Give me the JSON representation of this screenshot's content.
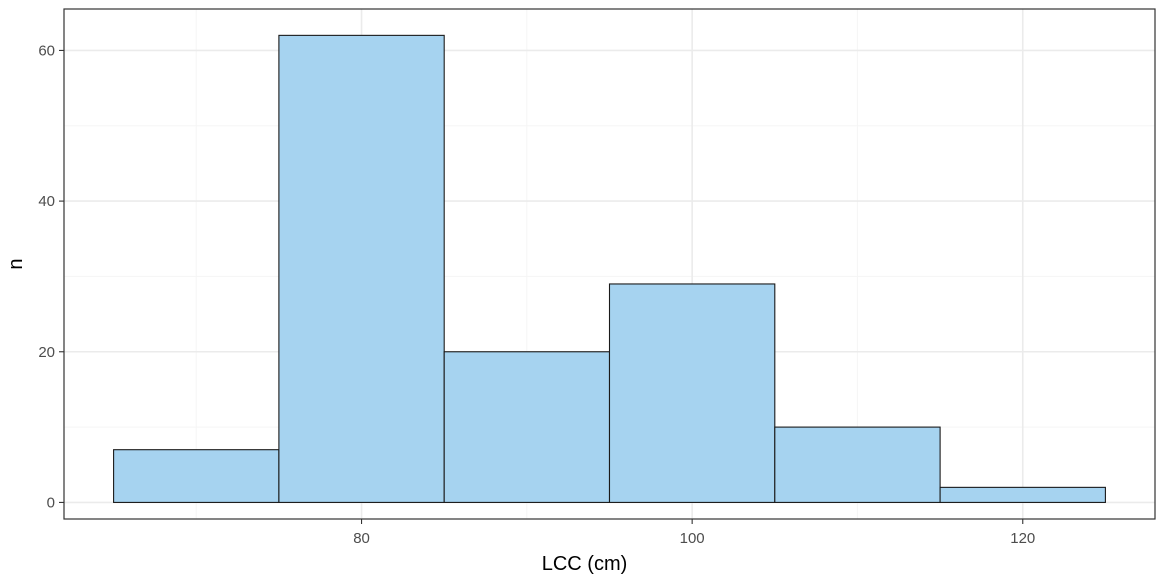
{
  "chart_data": {
    "type": "bar",
    "subtype": "histogram",
    "title": "",
    "xlabel": "LCC (cm)",
    "ylabel": "n",
    "bins": [
      {
        "x_start": 65,
        "x_end": 75,
        "count": 7
      },
      {
        "x_start": 75,
        "x_end": 85,
        "count": 62
      },
      {
        "x_start": 85,
        "x_end": 95,
        "count": 20
      },
      {
        "x_start": 95,
        "x_end": 105,
        "count": 29
      },
      {
        "x_start": 105,
        "x_end": 115,
        "count": 10
      },
      {
        "x_start": 115,
        "x_end": 125,
        "count": 2
      }
    ],
    "xlim": [
      62,
      128
    ],
    "ylim": [
      -2.2,
      65.5
    ],
    "x_ticks": [
      80,
      100,
      120
    ],
    "x_minor_ticks": [
      70,
      90,
      110
    ],
    "y_ticks": [
      0,
      20,
      40,
      60
    ],
    "y_minor_ticks": [
      10,
      30,
      50
    ],
    "x_tick_labels": [
      "80",
      "100",
      "120"
    ],
    "y_tick_labels": [
      "0",
      "20",
      "40",
      "60"
    ],
    "grid": true,
    "legend": "none",
    "colors": {
      "bar_fill": "#a6d3f0",
      "bar_stroke": "#1a1a1a",
      "grid_major": "#ebebeb",
      "grid_minor": "#f5f5f5",
      "panel_border": "#333333",
      "tick_text": "#4d4d4d"
    }
  }
}
